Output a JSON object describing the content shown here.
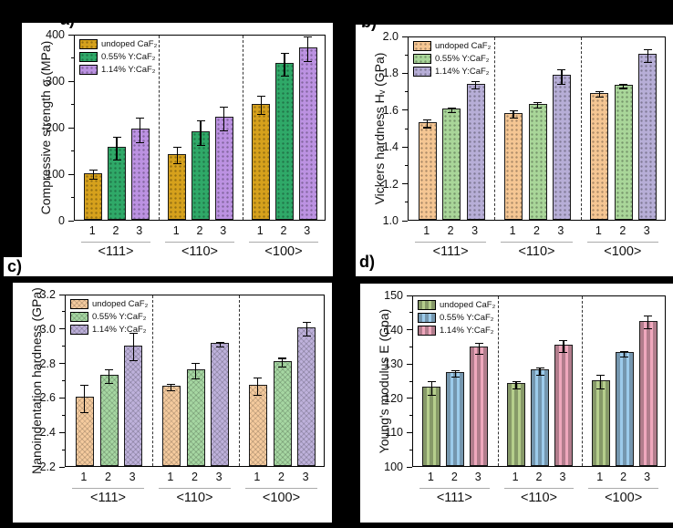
{
  "figure": {
    "background": "#000000",
    "panel_labels": {
      "a": "a)",
      "b": "b)",
      "c": "c)",
      "d": "d)"
    },
    "group_labels": [
      "<111>",
      "<110>",
      "<100>"
    ],
    "bar_index_labels": [
      "1",
      "2",
      "3"
    ],
    "legend_labels": [
      "undoped CaF₂",
      "0.55% Y:CaF₂",
      "1.14% Y:CaF₂"
    ]
  },
  "chart_data": [
    {
      "id": "a",
      "type": "bar",
      "ylabel": "Compressive strength σ (MPa)",
      "ylim": [
        0,
        400
      ],
      "yticks": [
        0,
        100,
        200,
        300,
        400
      ],
      "ytick_labels": [
        "0",
        "100",
        "200",
        "300",
        "400"
      ],
      "groups": [
        "<111>",
        "<110>",
        "<100>"
      ],
      "bar_labels": [
        "1",
        "2",
        "3"
      ],
      "legend_position": "top-left",
      "series": [
        {
          "name": "undoped CaF₂",
          "color": "#D6A11C",
          "pattern": "dots",
          "values": [
            101,
            142,
            250
          ],
          "errors": [
            10,
            18,
            20
          ]
        },
        {
          "name": "0.55% Y:CaF₂",
          "color": "#2FA968",
          "pattern": "dots",
          "values": [
            157,
            190,
            337
          ],
          "errors": [
            24,
            26,
            24
          ]
        },
        {
          "name": "1.14% Y:CaF₂",
          "color": "#BC92E2",
          "pattern": "dots",
          "values": [
            196,
            221,
            371
          ],
          "errors": [
            27,
            26,
            26
          ]
        }
      ]
    },
    {
      "id": "b",
      "type": "bar",
      "ylabel": "Vickers hardness Hᵥ (GPa)",
      "ylim": [
        1.0,
        2.0
      ],
      "yticks": [
        1.0,
        1.2,
        1.4,
        1.6,
        1.8,
        2.0
      ],
      "ytick_labels": [
        "1.0",
        "1.2",
        "1.4",
        "1.6",
        "1.8",
        "2.0"
      ],
      "groups": [
        "<111>",
        "<110>",
        "<100>"
      ],
      "bar_labels": [
        "1",
        "2",
        "3"
      ],
      "legend_position": "top-left",
      "series": [
        {
          "name": "undoped CaF₂",
          "color": "#F5C693",
          "pattern": "dots",
          "values": [
            1.53,
            1.58,
            1.69
          ],
          "errors": [
            0.02,
            0.02,
            0.015
          ]
        },
        {
          "name": "0.55% Y:CaF₂",
          "color": "#A9D699",
          "pattern": "dots",
          "values": [
            1.605,
            1.63,
            1.735
          ],
          "errors": [
            0.012,
            0.015,
            0.012
          ]
        },
        {
          "name": "1.14% Y:CaF₂",
          "color": "#B7AED7",
          "pattern": "dots",
          "values": [
            1.74,
            1.785,
            1.9
          ],
          "errors": [
            0.02,
            0.04,
            0.035
          ]
        }
      ]
    },
    {
      "id": "c",
      "type": "bar",
      "ylabel": "Nanoindentation hardness (GPa)",
      "ylim": [
        2.2,
        3.2
      ],
      "yticks": [
        2.2,
        2.4,
        2.6,
        2.8,
        3.0,
        3.2
      ],
      "ytick_labels": [
        "2.2",
        "2.4",
        "2.6",
        "2.8",
        "3.0",
        "3.2"
      ],
      "groups": [
        "<111>",
        "<110>",
        "<100>"
      ],
      "bar_labels": [
        "1",
        "2",
        "3"
      ],
      "legend_position": "top-left",
      "series": [
        {
          "name": "undoped CaF₂",
          "color": "#F5CB9E",
          "pattern": "cross",
          "values": [
            2.6,
            2.665,
            2.67
          ],
          "errors": [
            0.08,
            0.02,
            0.05
          ]
        },
        {
          "name": "0.55% Y:CaF₂",
          "color": "#A6D7A2",
          "pattern": "cross",
          "values": [
            2.73,
            2.76,
            2.81
          ],
          "errors": [
            0.04,
            0.045,
            0.025
          ]
        },
        {
          "name": "1.14% Y:CaF₂",
          "color": "#BEB1DB",
          "pattern": "cross",
          "values": [
            2.9,
            2.915,
            3.005
          ],
          "errors": [
            0.08,
            0.015,
            0.04
          ]
        }
      ]
    },
    {
      "id": "d",
      "type": "bar",
      "ylabel": "Young's modulus E (Gpa)",
      "ylim": [
        100,
        150
      ],
      "yticks": [
        100,
        110,
        120,
        130,
        140,
        150
      ],
      "ytick_labels": [
        "100",
        "110",
        "120",
        "130",
        "140",
        "150"
      ],
      "groups": [
        "<111>",
        "<110>",
        "<100>"
      ],
      "bar_labels": [
        "1",
        "2",
        "3"
      ],
      "legend_position": "top-left",
      "series": [
        {
          "name": "undoped CaF₂",
          "color": "#B5CE8C",
          "pattern": "dash",
          "values": [
            123.2,
            124.1,
            125.1
          ],
          "errors": [
            2.0,
            1.0,
            2.0
          ]
        },
        {
          "name": "0.55% Y:CaF₂",
          "color": "#9CCBEB",
          "pattern": "dash",
          "values": [
            127.4,
            128.1,
            133.2
          ],
          "errors": [
            1.0,
            1.0,
            0.8
          ]
        },
        {
          "name": "1.14% Y:CaF₂",
          "color": "#EFA8BD",
          "pattern": "dash",
          "values": [
            134.8,
            135.4,
            142.4
          ],
          "errors": [
            1.6,
            1.8,
            1.8
          ]
        }
      ]
    }
  ]
}
